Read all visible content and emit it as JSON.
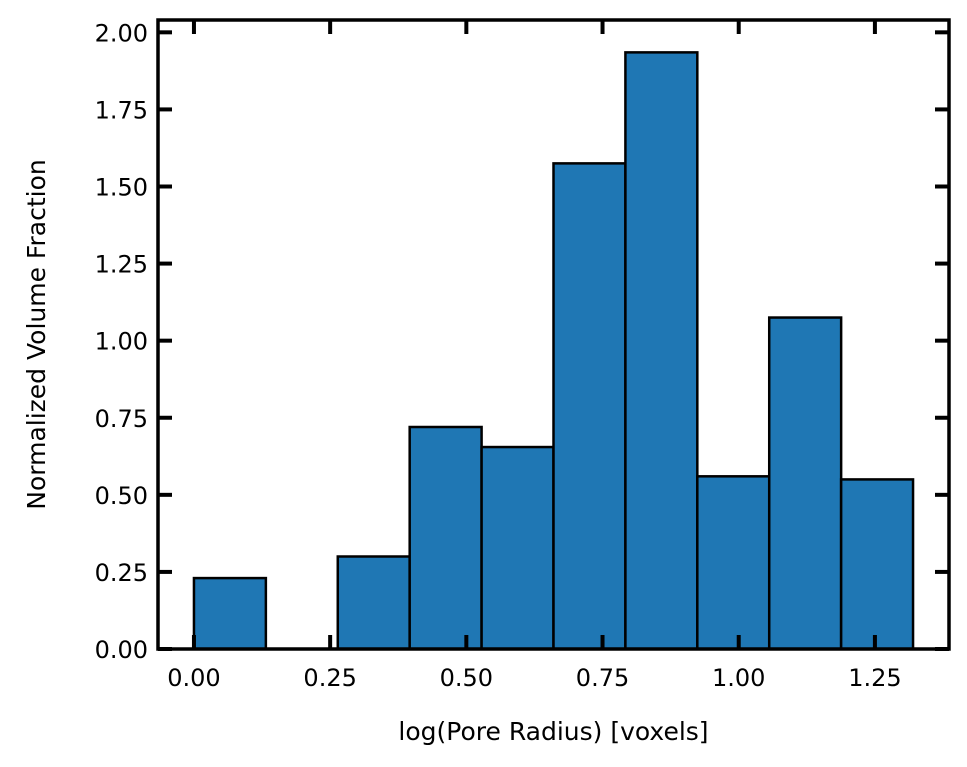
{
  "chart_data": {
    "type": "bar",
    "title": "",
    "xlabel": "log(Pore Radius) [voxels]",
    "ylabel": "Normalized Volume Fraction",
    "xlim": [
      -0.066,
      1.386
    ],
    "ylim": [
      0,
      2.04
    ],
    "xticks": [
      "0.00",
      "0.25",
      "0.50",
      "0.75",
      "1.00",
      "1.25"
    ],
    "yticks": [
      "0.00",
      "0.25",
      "0.50",
      "0.75",
      "1.00",
      "1.25",
      "1.50",
      "1.75",
      "2.00"
    ],
    "bins": [
      {
        "start": 0.0,
        "end": 0.132,
        "value": 0.23
      },
      {
        "start": 0.132,
        "end": 0.264,
        "value": 0.0
      },
      {
        "start": 0.264,
        "end": 0.396,
        "value": 0.3
      },
      {
        "start": 0.396,
        "end": 0.528,
        "value": 0.72
      },
      {
        "start": 0.528,
        "end": 0.66,
        "value": 0.655
      },
      {
        "start": 0.66,
        "end": 0.792,
        "value": 1.575
      },
      {
        "start": 0.792,
        "end": 0.924,
        "value": 1.935
      },
      {
        "start": 0.924,
        "end": 1.056,
        "value": 0.56
      },
      {
        "start": 1.056,
        "end": 1.188,
        "value": 1.075
      },
      {
        "start": 1.188,
        "end": 1.32,
        "value": 0.55
      }
    ],
    "bar_color": "#1f77b4",
    "edge_color": "#000000",
    "grid": false,
    "legend": "none"
  }
}
